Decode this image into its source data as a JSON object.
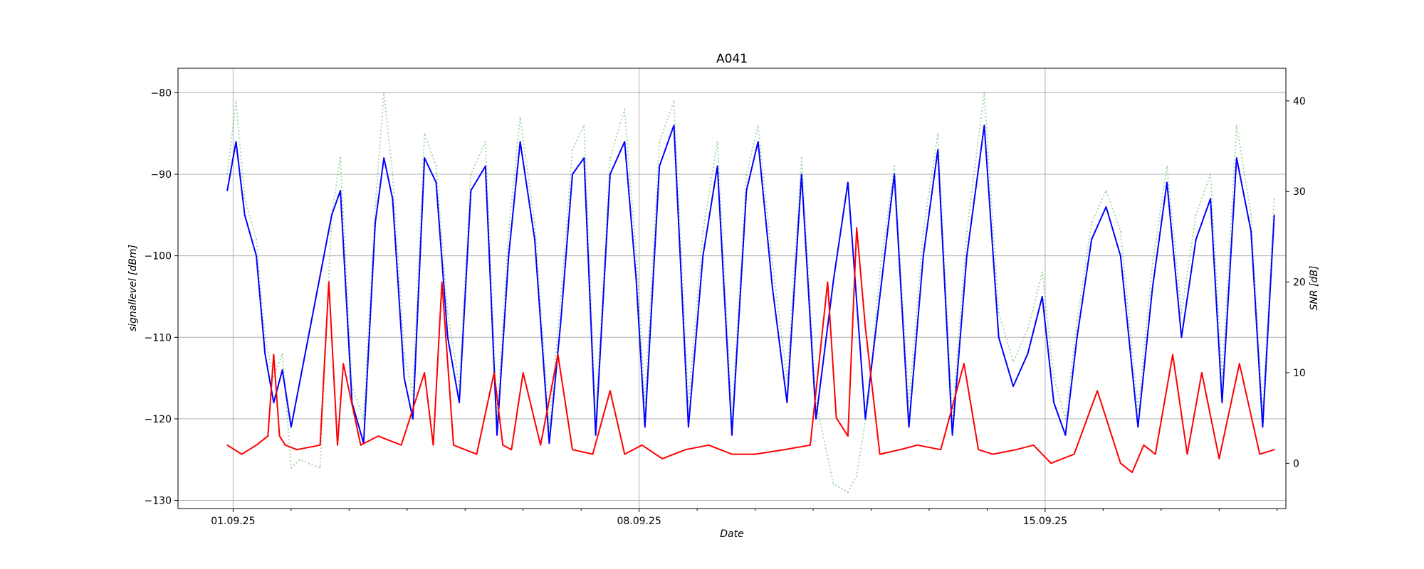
{
  "chart_data": {
    "type": "line",
    "title": "A041",
    "xlabel": "Date",
    "ylabel": "signallevel [dBm]",
    "y2label": "SNR [dB]",
    "x_ticks": [
      "01.09.25",
      "08.09.25",
      "15.09.25"
    ],
    "x_tick_days": [
      0,
      7,
      14
    ],
    "xlim_days": [
      -0.95,
      18.15
    ],
    "y_ticks": [
      -80,
      -90,
      -100,
      -110,
      -120,
      -130
    ],
    "ylim": [
      -131,
      -77
    ],
    "y2_ticks": [
      40,
      30,
      20,
      10,
      0
    ],
    "y2lim": [
      -5,
      43.6
    ],
    "grid": true,
    "colors": {
      "signal": "#0000ff",
      "snr": "#ff0000",
      "secondary": "#2ca02c"
    },
    "series": [
      {
        "axis": "left",
        "color": "#0000ff",
        "style": "solid",
        "x_days": [
          -0.1,
          0.05,
          0.2,
          0.4,
          0.55,
          0.7,
          0.85,
          1.0,
          1.7,
          1.85,
          2.05,
          2.25,
          2.45,
          2.6,
          2.75,
          2.95,
          3.1,
          3.3,
          3.5,
          3.7,
          3.9,
          4.1,
          4.35,
          4.55,
          4.75,
          4.95,
          5.2,
          5.45,
          5.65,
          5.85,
          6.05,
          6.25,
          6.5,
          6.75,
          6.95,
          7.1,
          7.35,
          7.6,
          7.85,
          8.1,
          8.35,
          8.6,
          8.85,
          9.05,
          9.3,
          9.55,
          9.8,
          10.05,
          10.35,
          10.6,
          10.9,
          11.15,
          11.4,
          11.65,
          11.9,
          12.15,
          12.4,
          12.65,
          12.95,
          13.2,
          13.45,
          13.7,
          13.95,
          14.15,
          14.35,
          14.55,
          14.8,
          15.05,
          15.3,
          15.6,
          15.85,
          16.1,
          16.35,
          16.6,
          16.85,
          17.05,
          17.3,
          17.55,
          17.75,
          17.95
        ],
        "values": [
          -92,
          -86,
          -95,
          -100,
          -112,
          -118,
          -114,
          -121,
          -95,
          -92,
          -118,
          -123,
          -96,
          -88,
          -93,
          -115,
          -120,
          -88,
          -91,
          -110,
          -118,
          -92,
          -89,
          -122,
          -100,
          -86,
          -98,
          -123,
          -108,
          -90,
          -88,
          -122,
          -90,
          -86,
          -103,
          -121,
          -89,
          -84,
          -121,
          -100,
          -89,
          -122,
          -92,
          -86,
          -104,
          -118,
          -90,
          -120,
          -103,
          -91,
          -120,
          -105,
          -90,
          -121,
          -100,
          -87,
          -122,
          -100,
          -84,
          -110,
          -116,
          -112,
          -105,
          -118,
          -122,
          -110,
          -98,
          -94,
          -100,
          -121,
          -104,
          -91,
          -110,
          -98,
          -93,
          -118,
          -88,
          -97,
          -121,
          -95
        ]
      },
      {
        "axis": "right",
        "color": "#ff0000",
        "style": "solid",
        "x_days": [
          -0.1,
          0.15,
          0.4,
          0.6,
          0.7,
          0.8,
          0.9,
          1.1,
          1.5,
          1.65,
          1.8,
          1.9,
          2.2,
          2.5,
          2.9,
          3.3,
          3.45,
          3.6,
          3.8,
          4.2,
          4.5,
          4.65,
          4.8,
          5.0,
          5.3,
          5.6,
          5.85,
          6.2,
          6.5,
          6.75,
          7.05,
          7.4,
          7.8,
          8.2,
          8.6,
          9.0,
          9.5,
          9.95,
          10.25,
          10.4,
          10.6,
          10.75,
          10.9,
          11.15,
          11.5,
          11.8,
          12.2,
          12.6,
          12.85,
          13.1,
          13.5,
          13.8,
          14.1,
          14.5,
          14.9,
          15.3,
          15.5,
          15.7,
          15.9,
          16.2,
          16.45,
          16.7,
          17.0,
          17.35,
          17.7,
          17.95
        ],
        "values": [
          2,
          1,
          2,
          3,
          12,
          3,
          2,
          1.5,
          2,
          20,
          2,
          11,
          2,
          3,
          2,
          10,
          2,
          20,
          2,
          1,
          10,
          2,
          1.5,
          10,
          2,
          12,
          1.5,
          1,
          8,
          1,
          2,
          0.5,
          1.5,
          2,
          1,
          1,
          1.5,
          2,
          20,
          5,
          3,
          26,
          15,
          1,
          1.5,
          2,
          1.5,
          11,
          1.5,
          1,
          1.5,
          2,
          0,
          1,
          8,
          0,
          -1,
          2,
          1,
          12,
          1,
          10,
          0.5,
          11,
          1,
          1.5
        ]
      },
      {
        "axis": "left",
        "color": "#2ca02c",
        "style": "dotted",
        "x_days": [
          -0.1,
          0.05,
          0.2,
          0.4,
          0.55,
          0.7,
          0.85,
          1.0,
          1.15,
          1.5,
          1.7,
          1.85,
          2.05,
          2.25,
          2.45,
          2.6,
          2.75,
          2.95,
          3.1,
          3.3,
          3.5,
          3.7,
          3.9,
          4.1,
          4.35,
          4.55,
          4.75,
          4.95,
          5.2,
          5.45,
          5.65,
          5.85,
          6.05,
          6.25,
          6.5,
          6.75,
          6.95,
          7.1,
          7.35,
          7.6,
          7.85,
          8.1,
          8.35,
          8.6,
          8.85,
          9.05,
          9.3,
          9.55,
          9.8,
          10.05,
          10.35,
          10.6,
          10.75,
          10.95,
          11.15,
          11.4,
          11.65,
          11.9,
          12.15,
          12.4,
          12.65,
          12.95,
          13.2,
          13.45,
          13.7,
          13.95,
          14.15,
          14.35,
          14.55,
          14.8,
          15.05,
          15.3,
          15.6,
          15.85,
          16.1,
          16.35,
          16.6,
          16.85,
          17.05,
          17.3,
          17.55,
          17.75,
          17.95
        ],
        "values": [
          -90,
          -81,
          -93,
          -98,
          -110,
          -115,
          -112,
          -126,
          -125,
          -126,
          -95,
          -88,
          -116,
          -120,
          -94,
          -80,
          -90,
          -112,
          -117,
          -85,
          -89,
          -107,
          -116,
          -90,
          -86,
          -120,
          -97,
          -83,
          -96,
          -121,
          -105,
          -87,
          -84,
          -120,
          -88,
          -82,
          -100,
          -118,
          -86,
          -81,
          -118,
          -97,
          -86,
          -120,
          -90,
          -84,
          -101,
          -115,
          -88,
          -118,
          -128,
          -129,
          -127,
          -118,
          -102,
          -89,
          -118,
          -97,
          -85,
          -120,
          -97,
          -80,
          -107,
          -113,
          -109,
          -102,
          -115,
          -120,
          -108,
          -96,
          -92,
          -97,
          -119,
          -101,
          -89,
          -107,
          -95,
          -90,
          -115,
          -84,
          -95,
          -119,
          -93
        ]
      }
    ]
  }
}
